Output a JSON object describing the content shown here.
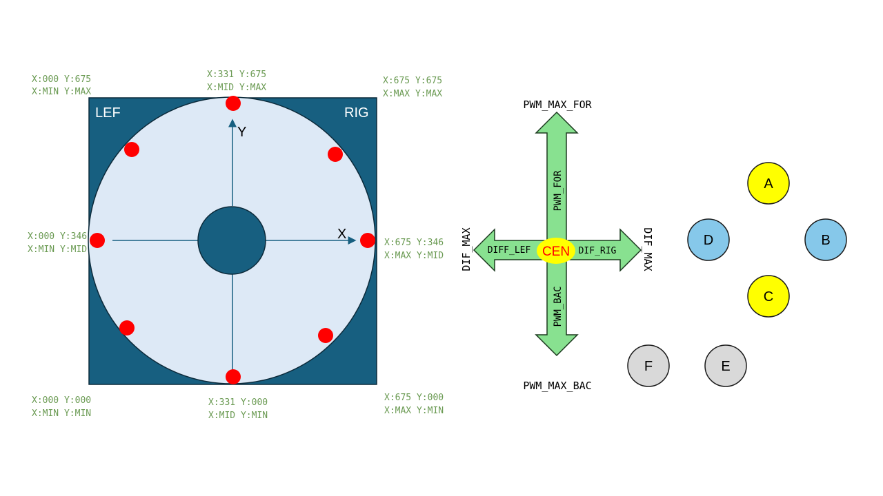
{
  "joystick": {
    "corner_left": "LEF",
    "corner_right": "RIG",
    "axis_x": "X",
    "axis_y": "Y",
    "colors": {
      "square": "#175f80",
      "disc": "#dde9f6",
      "center": "#175f80",
      "marker": "#ff0000"
    },
    "coords": {
      "top_left_1": "X:000 Y:675",
      "top_left_2": "X:MIN Y:MAX",
      "top_mid_1": "X:331 Y:675",
      "top_mid_2": "X:MID Y:MAX",
      "top_right_1": "X:675 Y:675",
      "top_right_2": "X:MAX Y:MAX",
      "mid_left_1": "X:000 Y:346",
      "mid_left_2": "X:MIN Y:MID",
      "mid_right_1": "X:675 Y:346",
      "mid_right_2": "X:MAX Y:MID",
      "bottom_left_1": "X:000 Y:000",
      "bottom_left_2": "X:MIN Y:MIN",
      "bottom_mid_1": "X:331 Y:000",
      "bottom_mid_2": "X:MID Y:MIN",
      "bottom_right_1": "X:675 Y:000",
      "bottom_right_2": "X:MAX Y:MIN"
    }
  },
  "arrows": {
    "pwm_max_for": "PWM_MAX_FOR",
    "pwm_max_bac": "PWM_MAX_BAC",
    "pwm_for": "PWM_FOR",
    "pwm_bac": "PWM_BAC",
    "diff_lef": "DIFF_LEF",
    "dif_rig": "DIF_RIG",
    "dif_max_left": "DIF_MAX",
    "dif_max_right": "DIF_MAX",
    "center": "CEN",
    "colors": {
      "arrow": "#88e190",
      "center_fill": "#ffff00",
      "center_text": "#ff0000"
    }
  },
  "buttons": {
    "a": "A",
    "b": "B",
    "c": "C",
    "d": "D",
    "e": "E",
    "f": "F",
    "colors": {
      "yellow": "#ffff00",
      "blue": "#86c8ea",
      "gray": "#d9d9d9"
    }
  }
}
